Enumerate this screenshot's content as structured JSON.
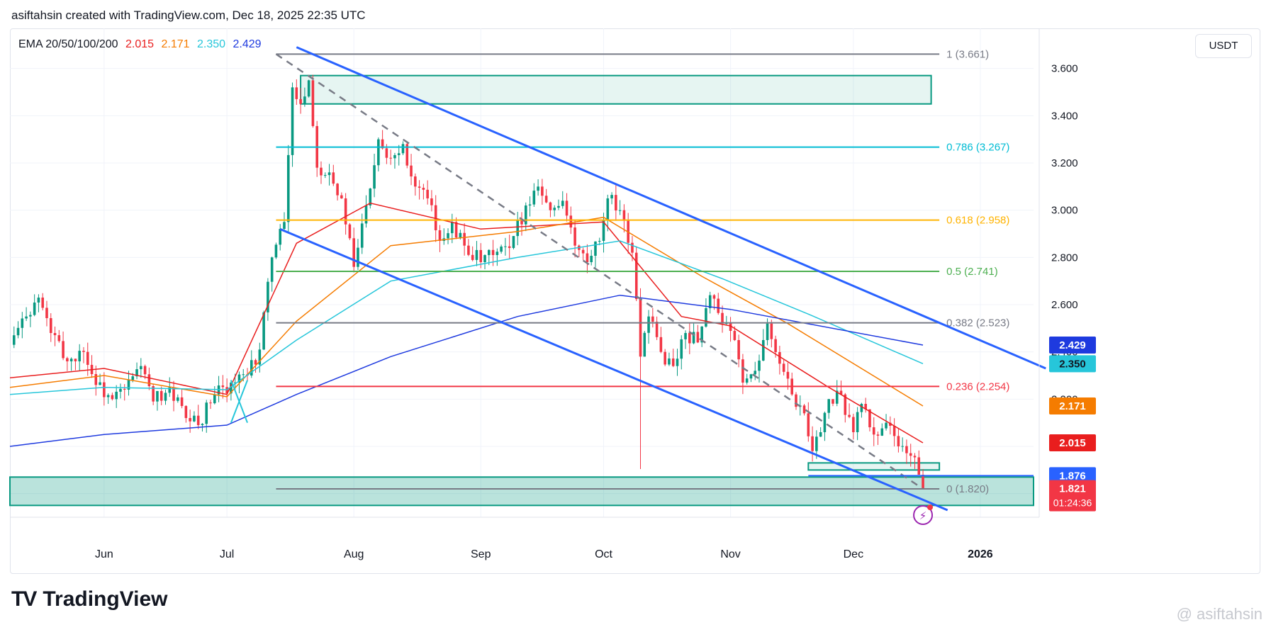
{
  "header": {
    "caption": "asiftahsin created with TradingView.com, Dec 18, 2025 22:35 UTC"
  },
  "indicator": {
    "label": "EMA 20/50/100/200",
    "values": [
      {
        "text": "2.015",
        "color": "#e91e1e"
      },
      {
        "text": "2.171",
        "color": "#f57c00"
      },
      {
        "text": "2.350",
        "color": "#26c6da"
      },
      {
        "text": "2.429",
        "color": "#1e3adf"
      }
    ]
  },
  "currency": "USDT",
  "footer": {
    "logo_text": "TradingView",
    "watermark": "@ asiftahsin"
  },
  "colors": {
    "up": "#089981",
    "down": "#f23645",
    "channel": "#2962ff",
    "fib_1": "#787b86",
    "fib_786": "#00bcd4",
    "fib_618": "#ffb300",
    "fib_05": "#4caf50",
    "fib_382": "#787b86",
    "fib_236": "#f23645",
    "fib_0": "#787b86",
    "zone": "#089981"
  },
  "chart_data": {
    "type": "candlestick",
    "y_axis_ticks": [
      "3.600",
      "3.400",
      "3.200",
      "3.000",
      "2.800",
      "2.600",
      "2.400",
      "2.200",
      "2.000",
      "1.800"
    ],
    "ylim": [
      1.7,
      3.71
    ],
    "x_axis_ticks": [
      {
        "label": "Jun",
        "date": "2025-06-01"
      },
      {
        "label": "Jul",
        "date": "2025-07-01"
      },
      {
        "label": "Aug",
        "date": "2025-08-01"
      },
      {
        "label": "Sep",
        "date": "2025-09-01"
      },
      {
        "label": "Oct",
        "date": "2025-10-01"
      },
      {
        "label": "Nov",
        "date": "2025-11-01"
      },
      {
        "label": "Dec",
        "date": "2025-12-01"
      },
      {
        "label": "2026",
        "date": "2026-01-01"
      }
    ],
    "xlim": [
      "2025-05-09",
      "2026-01-14"
    ],
    "closes": [
      {
        "date": "2025-05-09",
        "close": 2.43
      },
      {
        "date": "2025-05-13",
        "close": 2.55
      },
      {
        "date": "2025-05-16",
        "close": 2.63
      },
      {
        "date": "2025-05-19",
        "close": 2.48
      },
      {
        "date": "2025-05-23",
        "close": 2.36
      },
      {
        "date": "2025-05-27",
        "close": 2.4
      },
      {
        "date": "2025-05-30",
        "close": 2.26
      },
      {
        "date": "2025-06-03",
        "close": 2.2
      },
      {
        "date": "2025-06-06",
        "close": 2.24
      },
      {
        "date": "2025-06-10",
        "close": 2.34
      },
      {
        "date": "2025-06-13",
        "close": 2.19
      },
      {
        "date": "2025-06-17",
        "close": 2.25
      },
      {
        "date": "2025-06-21",
        "close": 2.12
      },
      {
        "date": "2025-06-24",
        "close": 2.09
      },
      {
        "date": "2025-06-28",
        "close": 2.22
      },
      {
        "date": "2025-07-02",
        "close": 2.27
      },
      {
        "date": "2025-07-06",
        "close": 2.3
      },
      {
        "date": "2025-07-09",
        "close": 2.41
      },
      {
        "date": "2025-07-12",
        "close": 2.8
      },
      {
        "date": "2025-07-15",
        "close": 2.95
      },
      {
        "date": "2025-07-17",
        "close": 3.52
      },
      {
        "date": "2025-07-19",
        "close": 3.45
      },
      {
        "date": "2025-07-21",
        "close": 3.55
      },
      {
        "date": "2025-07-23",
        "close": 3.18
      },
      {
        "date": "2025-07-26",
        "close": 3.16
      },
      {
        "date": "2025-07-29",
        "close": 3.05
      },
      {
        "date": "2025-08-01",
        "close": 2.76
      },
      {
        "date": "2025-08-04",
        "close": 3.02
      },
      {
        "date": "2025-08-07",
        "close": 3.3
      },
      {
        "date": "2025-08-10",
        "close": 3.22
      },
      {
        "date": "2025-08-13",
        "close": 3.28
      },
      {
        "date": "2025-08-16",
        "close": 3.1
      },
      {
        "date": "2025-08-19",
        "close": 3.05
      },
      {
        "date": "2025-08-22",
        "close": 2.87
      },
      {
        "date": "2025-08-25",
        "close": 2.95
      },
      {
        "date": "2025-08-28",
        "close": 2.85
      },
      {
        "date": "2025-09-01",
        "close": 2.78
      },
      {
        "date": "2025-09-04",
        "close": 2.81
      },
      {
        "date": "2025-09-08",
        "close": 2.84
      },
      {
        "date": "2025-09-12",
        "close": 3.02
      },
      {
        "date": "2025-09-15",
        "close": 3.1
      },
      {
        "date": "2025-09-18",
        "close": 3.0
      },
      {
        "date": "2025-09-21",
        "close": 3.04
      },
      {
        "date": "2025-09-24",
        "close": 2.85
      },
      {
        "date": "2025-09-27",
        "close": 2.78
      },
      {
        "date": "2025-09-30",
        "close": 2.87
      },
      {
        "date": "2025-10-02",
        "close": 3.05
      },
      {
        "date": "2025-10-05",
        "close": 3.0
      },
      {
        "date": "2025-10-08",
        "close": 2.82
      },
      {
        "date": "2025-10-10",
        "close": 2.38
      },
      {
        "date": "2025-10-12",
        "close": 2.55
      },
      {
        "date": "2025-10-15",
        "close": 2.4
      },
      {
        "date": "2025-10-18",
        "close": 2.34
      },
      {
        "date": "2025-10-21",
        "close": 2.48
      },
      {
        "date": "2025-10-24",
        "close": 2.44
      },
      {
        "date": "2025-10-27",
        "close": 2.64
      },
      {
        "date": "2025-10-30",
        "close": 2.52
      },
      {
        "date": "2025-11-02",
        "close": 2.45
      },
      {
        "date": "2025-11-04",
        "close": 2.27
      },
      {
        "date": "2025-11-07",
        "close": 2.32
      },
      {
        "date": "2025-11-10",
        "close": 2.52
      },
      {
        "date": "2025-11-13",
        "close": 2.35
      },
      {
        "date": "2025-11-16",
        "close": 2.22
      },
      {
        "date": "2025-11-19",
        "close": 2.14
      },
      {
        "date": "2025-11-21",
        "close": 1.98
      },
      {
        "date": "2025-11-23",
        "close": 2.06
      },
      {
        "date": "2025-11-25",
        "close": 2.2
      },
      {
        "date": "2025-11-28",
        "close": 2.22
      },
      {
        "date": "2025-12-01",
        "close": 2.06
      },
      {
        "date": "2025-12-03",
        "close": 2.18
      },
      {
        "date": "2025-12-06",
        "close": 2.05
      },
      {
        "date": "2025-12-09",
        "close": 2.1
      },
      {
        "date": "2025-12-12",
        "close": 2.0
      },
      {
        "date": "2025-12-15",
        "close": 1.96
      },
      {
        "date": "2025-12-17",
        "close": 1.88
      },
      {
        "date": "2025-12-18",
        "close": 1.821
      }
    ],
    "ema_series": [
      {
        "name": "EMA 20",
        "color": "#e91e1e",
        "points": [
          [
            "2025-05-09",
            2.29
          ],
          [
            "2025-06-01",
            2.33
          ],
          [
            "2025-07-01",
            2.22
          ],
          [
            "2025-07-18",
            2.86
          ],
          [
            "2025-08-05",
            3.03
          ],
          [
            "2025-09-01",
            2.92
          ],
          [
            "2025-10-01",
            2.95
          ],
          [
            "2025-10-20",
            2.55
          ],
          [
            "2025-11-01",
            2.51
          ],
          [
            "2025-11-25",
            2.25
          ],
          [
            "2025-12-18",
            2.015
          ]
        ]
      },
      {
        "name": "EMA 50",
        "color": "#f57c00",
        "points": [
          [
            "2025-05-09",
            2.25
          ],
          [
            "2025-06-01",
            2.3
          ],
          [
            "2025-07-01",
            2.21
          ],
          [
            "2025-07-18",
            2.53
          ],
          [
            "2025-08-10",
            2.85
          ],
          [
            "2025-09-10",
            2.91
          ],
          [
            "2025-10-01",
            2.97
          ],
          [
            "2025-10-25",
            2.72
          ],
          [
            "2025-11-15",
            2.52
          ],
          [
            "2025-12-18",
            2.171
          ]
        ]
      },
      {
        "name": "EMA 100",
        "color": "#26c6da",
        "points": [
          [
            "2025-05-09",
            2.22
          ],
          [
            "2025-06-01",
            2.25
          ],
          [
            "2025-07-01",
            2.24
          ],
          [
            "2025-07-18",
            2.45
          ],
          [
            "2025-08-10",
            2.7
          ],
          [
            "2025-09-10",
            2.8
          ],
          [
            "2025-10-05",
            2.87
          ],
          [
            "2025-10-30",
            2.71
          ],
          [
            "2025-11-20",
            2.56
          ],
          [
            "2025-12-18",
            2.35
          ]
        ]
      },
      {
        "name": "EMA 200",
        "color": "#1e3adf",
        "points": [
          [
            "2025-05-09",
            2.0
          ],
          [
            "2025-06-01",
            2.05
          ],
          [
            "2025-07-01",
            2.09
          ],
          [
            "2025-07-18",
            2.22
          ],
          [
            "2025-08-10",
            2.38
          ],
          [
            "2025-09-10",
            2.55
          ],
          [
            "2025-10-05",
            2.64
          ],
          [
            "2025-11-01",
            2.58
          ],
          [
            "2025-12-18",
            2.429
          ]
        ]
      }
    ],
    "fib_levels": [
      {
        "label": "1 (3.661)",
        "value": 3.661,
        "color": "#787b86"
      },
      {
        "label": "0.786 (3.267)",
        "value": 3.267,
        "color": "#00bcd4"
      },
      {
        "label": "0.618 (2.958)",
        "value": 2.958,
        "color": "#ffb300"
      },
      {
        "label": "0.5 (2.741)",
        "value": 2.741,
        "color": "#4caf50"
      },
      {
        "label": "0.382 (2.523)",
        "value": 2.523,
        "color": "#787b86"
      },
      {
        "label": "0.236 (2.254)",
        "value": 2.254,
        "color": "#f23645"
      },
      {
        "label": "0 (1.820)",
        "value": 1.82,
        "color": "#787b86"
      }
    ],
    "fib_range": [
      "2025-07-13",
      "2025-12-22"
    ],
    "channel": {
      "upper": [
        [
          "2025-07-18",
          3.69
        ],
        [
          "2026-01-17",
          2.33
        ]
      ],
      "lower": [
        [
          "2025-07-14",
          2.92
        ],
        [
          "2025-12-24",
          1.73
        ]
      ]
    },
    "trend_dashed": [
      [
        "2025-07-13",
        3.661
      ],
      [
        "2025-12-18",
        1.82
      ]
    ],
    "zones": [
      {
        "from": "2025-07-19",
        "to": "2025-12-20",
        "high": 3.57,
        "low": 3.45
      },
      {
        "from": "2025-11-20",
        "to": "2025-12-22",
        "high": 1.93,
        "low": 1.9
      },
      {
        "from": "2025-05-09",
        "to": "2026-01-14",
        "high": 1.87,
        "low": 1.75
      }
    ],
    "support_line": {
      "from": "2025-11-20",
      "to": "2026-01-14",
      "value": 1.876
    },
    "price_labels": [
      {
        "text": "2.429",
        "value": 2.429,
        "bg": "#1e3adf",
        "fg": "#ffffff"
      },
      {
        "text": "2.350",
        "value": 2.35,
        "bg": "#26c6da",
        "fg": "#131722"
      },
      {
        "text": "2.171",
        "value": 2.171,
        "bg": "#f57c00",
        "fg": "#ffffff"
      },
      {
        "text": "2.015",
        "value": 2.015,
        "bg": "#e91e1e",
        "fg": "#ffffff"
      },
      {
        "text": "1.876",
        "value": 1.876,
        "bg": "#2962ff",
        "fg": "#ffffff"
      },
      {
        "text": "1.821",
        "value": 1.821,
        "bg": "#f23645",
        "fg": "#ffffff",
        "sub": "01:24:36"
      }
    ]
  }
}
